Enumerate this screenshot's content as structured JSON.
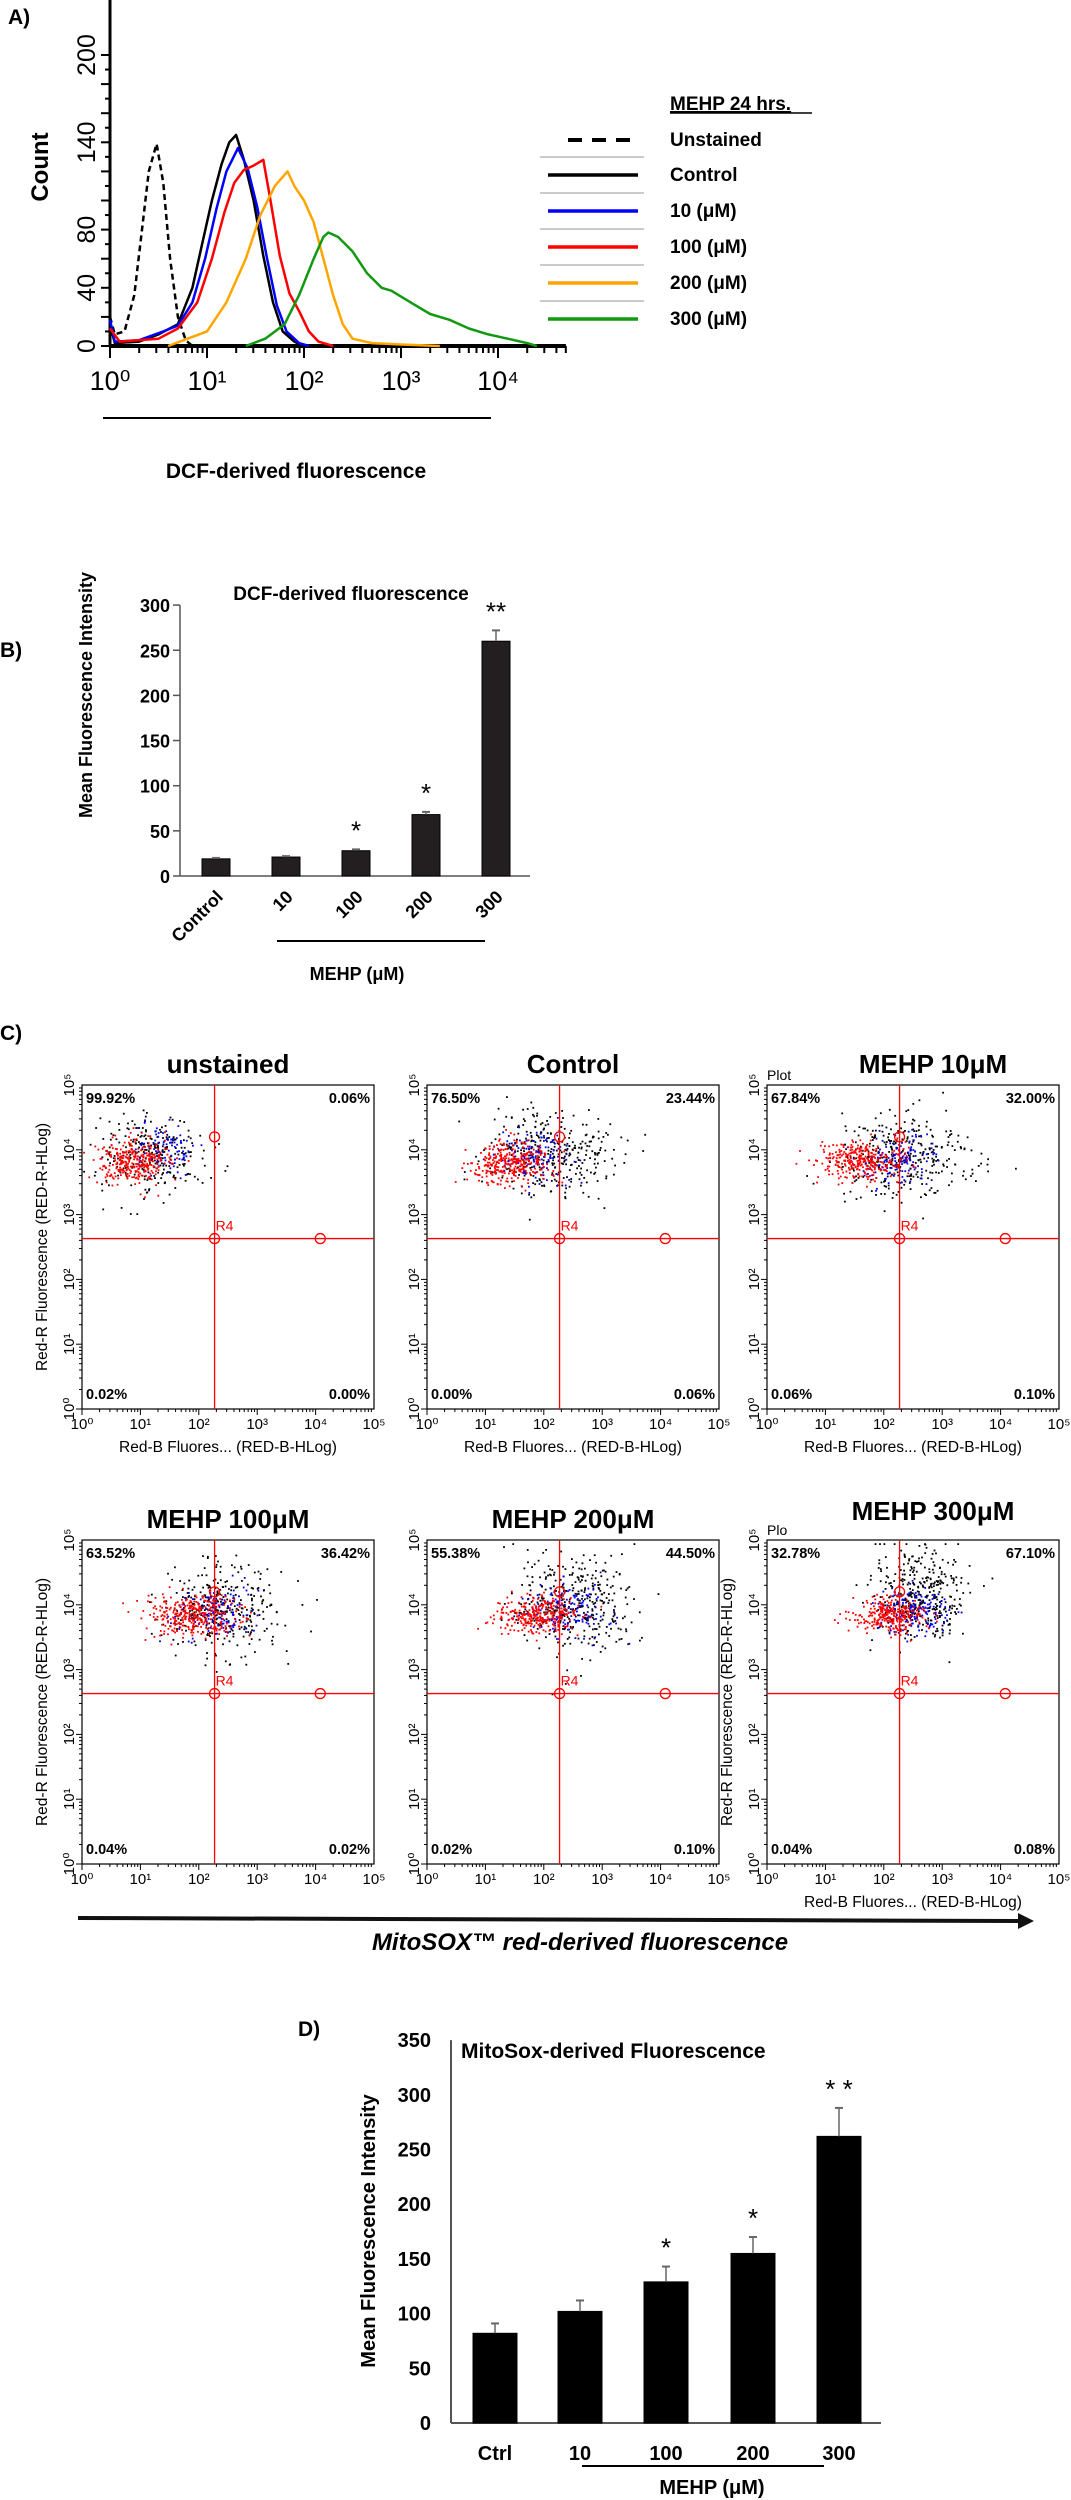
{
  "panels": {
    "a": "A)",
    "b": "B)",
    "c": "C)",
    "d": "D)"
  },
  "colors": {
    "unstained": "#000000",
    "control": "#000000",
    "c10": "#0000ff",
    "c100": "#ff0000",
    "c200": "#ffa500",
    "c300": "#119911",
    "gate": "#ff0000",
    "bar": "#231f20"
  },
  "chart_data": [
    {
      "id": "A",
      "type": "line",
      "title": "",
      "xlabel": "DCF-derived fluorescence",
      "ylabel": "Count",
      "x_scale": "log",
      "xlim_log10": [
        0,
        4.7
      ],
      "ylim": [
        0,
        210
      ],
      "x_tick_labels": [
        "10⁰",
        "10¹",
        "10²",
        "10³",
        "10⁴"
      ],
      "y_tick_labels": [
        {
          "v": 0,
          "t": "0"
        },
        {
          "v": 40,
          "t": "40"
        },
        {
          "v": 80,
          "t": "80"
        },
        {
          "v": 140,
          "t": "140"
        },
        {
          "v": 200,
          "t": "200"
        }
      ],
      "legend_title": "MEHP 24 hrs.",
      "legend_position": "right",
      "series": [
        {
          "name": "Unstained",
          "color": "#000000",
          "dashed": true,
          "points_log10x_count": [
            [
              0,
              20
            ],
            [
              0.05,
              8
            ],
            [
              0.15,
              10
            ],
            [
              0.25,
              35
            ],
            [
              0.33,
              80
            ],
            [
              0.4,
              120
            ],
            [
              0.48,
              139
            ],
            [
              0.55,
              112
            ],
            [
              0.62,
              60
            ],
            [
              0.7,
              20
            ],
            [
              0.78,
              4
            ],
            [
              0.85,
              0
            ]
          ]
        },
        {
          "name": "Control",
          "color": "#000000",
          "dashed": false,
          "points_log10x_count": [
            [
              0,
              15
            ],
            [
              0.05,
              2
            ],
            [
              0.3,
              3
            ],
            [
              0.5,
              8
            ],
            [
              0.7,
              15
            ],
            [
              0.85,
              40
            ],
            [
              0.95,
              70
            ],
            [
              1.05,
              100
            ],
            [
              1.15,
              125
            ],
            [
              1.23,
              140
            ],
            [
              1.3,
              145
            ],
            [
              1.38,
              128
            ],
            [
              1.48,
              100
            ],
            [
              1.58,
              62
            ],
            [
              1.68,
              30
            ],
            [
              1.78,
              10
            ],
            [
              1.9,
              3
            ],
            [
              2.0,
              0
            ]
          ]
        },
        {
          "name": "10 (μM)",
          "color": "#0000ff",
          "dashed": false,
          "points_log10x_count": [
            [
              0,
              18
            ],
            [
              0.05,
              3
            ],
            [
              0.3,
              4
            ],
            [
              0.55,
              10
            ],
            [
              0.7,
              14
            ],
            [
              0.85,
              30
            ],
            [
              0.98,
              60
            ],
            [
              1.1,
              95
            ],
            [
              1.2,
              120
            ],
            [
              1.32,
              136
            ],
            [
              1.42,
              122
            ],
            [
              1.52,
              95
            ],
            [
              1.62,
              60
            ],
            [
              1.72,
              28
            ],
            [
              1.82,
              10
            ],
            [
              1.95,
              2
            ],
            [
              2.05,
              0
            ]
          ]
        },
        {
          "name": "100 (μM)",
          "color": "#ff0000",
          "dashed": false,
          "points_log10x_count": [
            [
              0,
              12
            ],
            [
              0.1,
              3
            ],
            [
              0.5,
              5
            ],
            [
              0.7,
              12
            ],
            [
              0.9,
              30
            ],
            [
              1.05,
              60
            ],
            [
              1.18,
              92
            ],
            [
              1.28,
              112
            ],
            [
              1.38,
              121
            ],
            [
              1.48,
              124
            ],
            [
              1.58,
              128
            ],
            [
              1.65,
              102
            ],
            [
              1.75,
              62
            ],
            [
              1.85,
              36
            ],
            [
              1.95,
              24
            ],
            [
              2.05,
              10
            ],
            [
              2.15,
              3
            ],
            [
              2.3,
              0
            ]
          ]
        },
        {
          "name": "200 (μM)",
          "color": "#ffa500",
          "dashed": false,
          "points_log10x_count": [
            [
              0.6,
              0
            ],
            [
              0.8,
              5
            ],
            [
              1.0,
              10
            ],
            [
              1.2,
              30
            ],
            [
              1.4,
              60
            ],
            [
              1.55,
              90
            ],
            [
              1.7,
              110
            ],
            [
              1.83,
              120
            ],
            [
              1.9,
              110
            ],
            [
              2.0,
              100
            ],
            [
              2.1,
              85
            ],
            [
              2.2,
              60
            ],
            [
              2.3,
              35
            ],
            [
              2.4,
              15
            ],
            [
              2.5,
              5
            ],
            [
              2.7,
              2
            ],
            [
              3.0,
              1
            ],
            [
              3.4,
              0
            ]
          ]
        },
        {
          "name": "300 (μM)",
          "color": "#119911",
          "dashed": false,
          "points_log10x_count": [
            [
              1.4,
              0
            ],
            [
              1.6,
              5
            ],
            [
              1.8,
              15
            ],
            [
              1.95,
              35
            ],
            [
              2.1,
              60
            ],
            [
              2.2,
              75
            ],
            [
              2.25,
              78
            ],
            [
              2.35,
              75
            ],
            [
              2.5,
              65
            ],
            [
              2.65,
              50
            ],
            [
              2.8,
              40
            ],
            [
              2.9,
              38
            ],
            [
              3.1,
              30
            ],
            [
              3.3,
              22
            ],
            [
              3.5,
              18
            ],
            [
              3.7,
              12
            ],
            [
              3.9,
              8
            ],
            [
              4.1,
              5
            ],
            [
              4.3,
              2
            ],
            [
              4.4,
              0
            ]
          ]
        }
      ]
    },
    {
      "id": "B",
      "type": "bar",
      "title": "DCF-derived fluorescence",
      "ylabel": "Mean Fluorescence Intensity",
      "xlabel": "MEHP (μM)",
      "ylim": [
        0,
        300
      ],
      "y_ticks": [
        "0",
        "50",
        "100",
        "150",
        "200",
        "250",
        "300"
      ],
      "categories": [
        "Control",
        "10",
        "100",
        "200",
        "300"
      ],
      "values": [
        19,
        21,
        28,
        68,
        260
      ],
      "errors": [
        1,
        1,
        1.5,
        3,
        12
      ],
      "significance": [
        "",
        "",
        "*",
        "*",
        "**"
      ]
    },
    {
      "id": "C",
      "type": "scatter",
      "common_xlabel": "MitoSOX™ red-derived fluorescence",
      "x_axis_label": "Red-B Fluores... (RED-B-HLog)",
      "y_axis_label": "Red-R Fluorescence (RED-R-HLog)",
      "tick_labels": [
        "10⁰",
        "10¹",
        "10²",
        "10³",
        "10⁴",
        "10⁵"
      ],
      "gate_name": "R4",
      "gate_log10": {
        "x": 2.27,
        "y": 2.63,
        "top_marker_y": 4.2,
        "right_marker_x": 4.08
      },
      "plots": [
        {
          "title": "unstained",
          "quadrants": {
            "ul": "99.92%",
            "ur": "0.06%",
            "ll": "0.02%",
            "lr": "0.00%"
          },
          "corner": "",
          "clusters_log10": [
            {
              "color": "black",
              "cx": 1.2,
              "cy": 3.95,
              "sx": 0.45,
              "sy": 0.3,
              "n": 260
            },
            {
              "color": "blue",
              "cx": 1.35,
              "cy": 4.0,
              "sx": 0.25,
              "sy": 0.2,
              "n": 90
            },
            {
              "color": "red",
              "cx": 0.85,
              "cy": 3.85,
              "sx": 0.3,
              "sy": 0.17,
              "n": 320
            }
          ]
        },
        {
          "title": "Control",
          "quadrants": {
            "ul": "76.50%",
            "ur": "23.44%",
            "ll": "0.00%",
            "lr": "0.06%"
          },
          "corner": "",
          "clusters_log10": [
            {
              "color": "black",
              "cx": 2.1,
              "cy": 3.95,
              "sx": 0.55,
              "sy": 0.35,
              "n": 330
            },
            {
              "color": "blue",
              "cx": 1.9,
              "cy": 3.88,
              "sx": 0.35,
              "sy": 0.2,
              "n": 120
            },
            {
              "color": "red",
              "cx": 1.4,
              "cy": 3.82,
              "sx": 0.35,
              "sy": 0.15,
              "n": 330
            }
          ]
        },
        {
          "title": "MEHP 10μM",
          "quadrants": {
            "ul": "67.84%",
            "ur": "32.00%",
            "ll": "0.06%",
            "lr": "0.10%"
          },
          "corner": "Plot",
          "clusters_log10": [
            {
              "color": "black",
              "cx": 2.3,
              "cy": 3.9,
              "sx": 0.55,
              "sy": 0.3,
              "n": 330
            },
            {
              "color": "blue",
              "cx": 2.2,
              "cy": 3.85,
              "sx": 0.35,
              "sy": 0.18,
              "n": 130
            },
            {
              "color": "red",
              "cx": 1.6,
              "cy": 3.85,
              "sx": 0.38,
              "sy": 0.14,
              "n": 320
            }
          ]
        },
        {
          "title": "MEHP 100μM",
          "quadrants": {
            "ul": "63.52%",
            "ur": "36.42%",
            "ll": "0.04%",
            "lr": "0.02%"
          },
          "corner": "",
          "clusters_log10": [
            {
              "color": "black",
              "cx": 2.4,
              "cy": 3.95,
              "sx": 0.5,
              "sy": 0.35,
              "n": 340
            },
            {
              "color": "blue",
              "cx": 2.3,
              "cy": 3.9,
              "sx": 0.35,
              "sy": 0.2,
              "n": 130
            },
            {
              "color": "red",
              "cx": 1.85,
              "cy": 3.85,
              "sx": 0.38,
              "sy": 0.16,
              "n": 330
            }
          ]
        },
        {
          "title": "MEHP 200μM",
          "quadrants": {
            "ul": "55.38%",
            "ur": "44.50%",
            "ll": "0.02%",
            "lr": "0.10%"
          },
          "corner": "",
          "clusters_log10": [
            {
              "color": "black",
              "cx": 2.5,
              "cy": 4.05,
              "sx": 0.5,
              "sy": 0.38,
              "n": 360
            },
            {
              "color": "blue",
              "cx": 2.4,
              "cy": 3.9,
              "sx": 0.35,
              "sy": 0.2,
              "n": 140
            },
            {
              "color": "red",
              "cx": 1.85,
              "cy": 3.85,
              "sx": 0.35,
              "sy": 0.14,
              "n": 300
            }
          ]
        },
        {
          "title": "MEHP 300μM",
          "quadrants": {
            "ul": "32.78%",
            "ur": "67.10%",
            "ll": "0.04%",
            "lr": "0.08%"
          },
          "corner": "Plo",
          "clusters_log10": [
            {
              "color": "black",
              "cx": 2.6,
              "cy": 4.1,
              "sx": 0.4,
              "sy": 0.38,
              "n": 380
            },
            {
              "color": "blue",
              "cx": 2.5,
              "cy": 3.9,
              "sx": 0.3,
              "sy": 0.2,
              "n": 150
            },
            {
              "color": "red",
              "cx": 2.05,
              "cy": 3.85,
              "sx": 0.3,
              "sy": 0.13,
              "n": 280
            }
          ]
        }
      ]
    },
    {
      "id": "D",
      "type": "bar",
      "title": "MitoSox-derived Fluorescence",
      "ylabel": "Mean Fluorescence Intensity",
      "xlabel": "MEHP (μM)",
      "ylim": [
        0,
        350
      ],
      "y_ticks": [
        "0",
        "50",
        "100",
        "150",
        "200",
        "250",
        "300",
        "350"
      ],
      "categories": [
        "Ctrl",
        "10",
        "100",
        "200",
        "300"
      ],
      "values": [
        82,
        102,
        129,
        155,
        262
      ],
      "errors": [
        9,
        10,
        14,
        15,
        26
      ],
      "significance": [
        "",
        "",
        "*",
        "*",
        "* *"
      ]
    }
  ]
}
